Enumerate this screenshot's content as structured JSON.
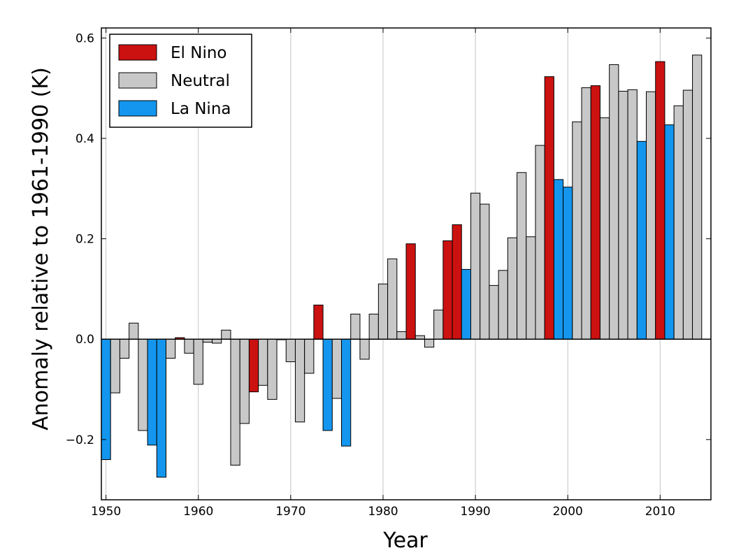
{
  "chart_data": {
    "type": "bar",
    "xlabel": "Year",
    "ylabel": "Anomaly relative to 1961-1990 (K)",
    "xlim": [
      1949.5,
      2015.5
    ],
    "ylim": [
      -0.32,
      0.62
    ],
    "xticks": [
      1950,
      1960,
      1970,
      1980,
      1990,
      2000,
      2010
    ],
    "yticks": [
      -0.2,
      0.0,
      0.2,
      0.4,
      0.6
    ],
    "ytick_labels": [
      "−0.2",
      "0.0",
      "0.2",
      "0.4",
      "0.6"
    ],
    "grid": "vertical",
    "legend_position": "top-left",
    "legend": [
      {
        "key": "elnino",
        "label": "El Nino",
        "color": "#cc1111"
      },
      {
        "key": "neutral",
        "label": "Neutral",
        "color": "#c8c8c8"
      },
      {
        "key": "lanina",
        "label": "La Nina",
        "color": "#1496ee"
      }
    ],
    "years": [
      1950,
      1951,
      1952,
      1953,
      1954,
      1955,
      1956,
      1957,
      1958,
      1959,
      1960,
      1961,
      1962,
      1963,
      1964,
      1965,
      1966,
      1967,
      1968,
      1969,
      1970,
      1971,
      1972,
      1973,
      1974,
      1975,
      1976,
      1977,
      1978,
      1979,
      1980,
      1981,
      1982,
      1983,
      1984,
      1985,
      1986,
      1987,
      1988,
      1989,
      1990,
      1991,
      1992,
      1993,
      1994,
      1995,
      1996,
      1997,
      1998,
      1999,
      2000,
      2001,
      2002,
      2003,
      2004,
      2005,
      2006,
      2007,
      2008,
      2009,
      2010,
      2011,
      2012,
      2013,
      2014
    ],
    "values": [
      -0.24,
      -0.107,
      -0.038,
      0.032,
      -0.182,
      -0.211,
      -0.275,
      -0.038,
      0.003,
      -0.028,
      -0.09,
      -0.006,
      -0.008,
      0.018,
      -0.251,
      -0.168,
      -0.105,
      -0.092,
      -0.12,
      0.0,
      -0.045,
      -0.165,
      -0.068,
      0.068,
      -0.182,
      -0.118,
      -0.213,
      0.05,
      -0.04,
      0.05,
      0.11,
      0.16,
      0.015,
      0.19,
      0.007,
      -0.016,
      0.058,
      0.196,
      0.228,
      0.139,
      0.291,
      0.269,
      0.107,
      0.137,
      0.202,
      0.332,
      0.204,
      0.386,
      0.523,
      0.318,
      0.303,
      0.433,
      0.501,
      0.505,
      0.441,
      0.547,
      0.494,
      0.497,
      0.394,
      0.493,
      0.553,
      0.427,
      0.465,
      0.496,
      0.566
    ],
    "categories": [
      "lanina",
      "neutral",
      "neutral",
      "neutral",
      "neutral",
      "lanina",
      "lanina",
      "neutral",
      "elnino",
      "neutral",
      "neutral",
      "neutral",
      "neutral",
      "neutral",
      "neutral",
      "neutral",
      "elnino",
      "neutral",
      "neutral",
      "neutral",
      "neutral",
      "neutral",
      "neutral",
      "elnino",
      "lanina",
      "neutral",
      "lanina",
      "neutral",
      "neutral",
      "neutral",
      "neutral",
      "neutral",
      "neutral",
      "elnino",
      "neutral",
      "neutral",
      "neutral",
      "elnino",
      "elnino",
      "lanina",
      "neutral",
      "neutral",
      "neutral",
      "neutral",
      "neutral",
      "neutral",
      "neutral",
      "neutral",
      "elnino",
      "lanina",
      "lanina",
      "neutral",
      "neutral",
      "elnino",
      "neutral",
      "neutral",
      "neutral",
      "neutral",
      "lanina",
      "neutral",
      "elnino",
      "lanina",
      "neutral",
      "neutral",
      "neutral"
    ]
  }
}
